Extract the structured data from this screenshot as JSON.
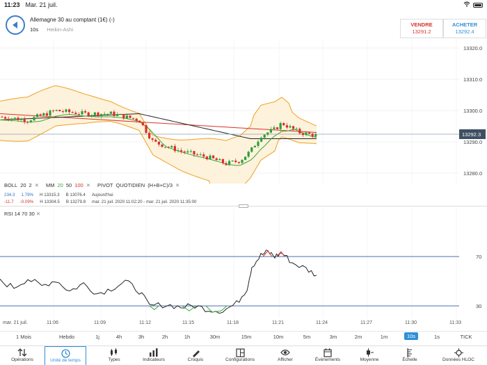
{
  "status_bar": {
    "time": "11:23",
    "date": "Mar. 21 juil."
  },
  "header": {
    "instrument": "Allemagne 30 au comptant (1€) (-)",
    "period": "10s",
    "chart_type": "Heikin-Ashi",
    "sell": {
      "label": "VENDRE",
      "price": "13291.2"
    },
    "buy": {
      "label": "ACHETER",
      "price": "13292.4"
    }
  },
  "price_axis": {
    "ticks": [
      "13320.0",
      "13310.0",
      "13300.0",
      "13290.0",
      "13280.0"
    ],
    "current": "13292.3"
  },
  "indicators": {
    "boll": {
      "name": "BOLL",
      "p1": "20",
      "p2": "2",
      "close": "✕"
    },
    "mm": {
      "name": "MM",
      "p1": "20",
      "p2": "50",
      "p3": "100",
      "close": "✕"
    },
    "pivot": {
      "name": "PIVOT",
      "p1": "QUOTIDIEN",
      "p2": "(H+B+C)/3",
      "close": "✕"
    },
    "rsi": {
      "name": "RSI",
      "p1": "14",
      "p2": "70",
      "p3": "30",
      "close": "✕"
    }
  },
  "stats": {
    "change_abs": "234.3",
    "change_pct": "1.79%",
    "high_label": "H 13315.3",
    "low_label": "B 13076.4",
    "today": "Aujourd'hui",
    "change_abs2": "-11.7",
    "change_pct2": "-0.09%",
    "high_label2": "H 13304.5",
    "low_label2": "B 13279.8",
    "range": "mar. 21 juil. 2020 11:02:20 - mar. 21 juil. 2020 11:35:00"
  },
  "rsi_axis": {
    "upper": "70",
    "lower": "30"
  },
  "time_axis": [
    "mar. 21 juil.",
    "11:06",
    "11:09",
    "11:12",
    "11:15",
    "11:18",
    "11:21",
    "11:24",
    "11:27",
    "11:30",
    "11:33"
  ],
  "periods": [
    "1 Mois",
    "Hebdo",
    "1j",
    "4h",
    "3h",
    "2h",
    "1h",
    "30m",
    "15m",
    "10m",
    "5m",
    "3m",
    "2m",
    "1m",
    "10s",
    "1s",
    "TICK"
  ],
  "active_period": "10s",
  "toolbar": [
    "Opérations",
    "Unité de temps",
    "Types",
    "Indicateurs",
    "Croquis",
    "Configurations",
    "Afficher",
    "Événements",
    "Moyenne",
    "Échelle",
    "Données HLOC"
  ],
  "toolbar_active": "Unité de temps",
  "colors": {
    "accent": "#2f8fd6",
    "up": "#2e9e3a",
    "down": "#d9302a",
    "bollinger": "#f0a020"
  }
}
